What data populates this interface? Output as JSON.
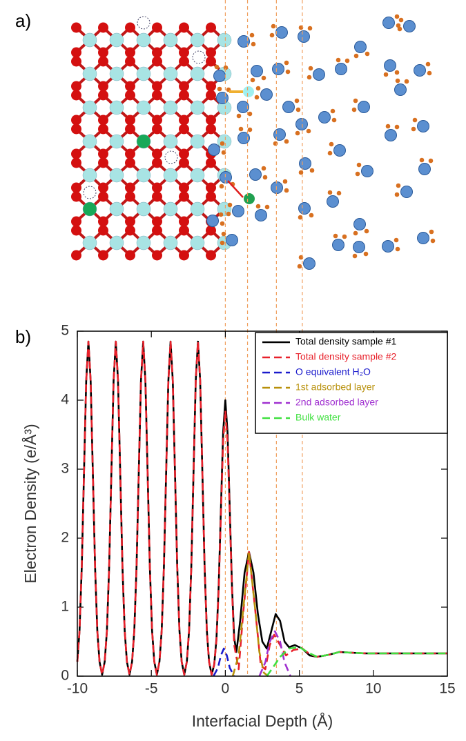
{
  "panel_a_label": "a)",
  "chart_data": {
    "type": "line",
    "panel_label": "b)",
    "xlabel": "Interfacial Depth (Å)",
    "ylabel": "Electron Density (e/Å³)",
    "xlim": [
      -10,
      15
    ],
    "xticks": [
      -10,
      -5,
      0,
      5,
      10,
      15
    ],
    "ylim": [
      0,
      5
    ],
    "yticks": [
      0,
      1,
      2,
      3,
      4,
      5
    ],
    "legend": "upper right",
    "vlines": [
      0,
      1.5,
      3.45,
      5.2
    ],
    "vline_color": "#f0a060",
    "series": [
      {
        "name": "Total density sample #1",
        "color": "#000000",
        "dash": false,
        "x": [
          -10,
          -9.85,
          -9.7,
          -9.55,
          -9.4,
          -9.25,
          -9.1,
          -8.95,
          -8.8,
          -8.65,
          -8.5,
          -8.325,
          -8.15,
          -8,
          -7.85,
          -7.7,
          -7.55,
          -7.4,
          -7.25,
          -7.1,
          -6.95,
          -6.8,
          -6.65,
          -6.475,
          -6.3,
          -6.15,
          -6,
          -5.85,
          -5.7,
          -5.55,
          -5.4,
          -5.25,
          -5.1,
          -4.95,
          -4.8,
          -4.625,
          -4.45,
          -4.3,
          -4.15,
          -4,
          -3.85,
          -3.7,
          -3.55,
          -3.4,
          -3.25,
          -3.1,
          -2.95,
          -2.775,
          -2.6,
          -2.45,
          -2.3,
          -2.15,
          -2,
          -1.85,
          -1.7,
          -1.55,
          -1.4,
          -1.25,
          -1.1,
          -0.925,
          -0.75,
          -0.6,
          -0.45,
          -0.3,
          -0.15,
          0,
          0.15,
          0.3,
          0.45,
          0.6,
          0.75,
          1,
          1.3,
          1.6,
          1.9,
          2.2,
          2.5,
          2.8,
          3.1,
          3.4,
          3.7,
          4,
          4.3,
          4.7,
          5.2,
          5.7,
          6.2,
          7,
          7.7,
          8.5,
          9.5,
          11,
          15
        ],
        "values": [
          0.21,
          0.66,
          1.58,
          2.94,
          4.28,
          4.85,
          4.28,
          2.94,
          1.58,
          0.66,
          0.21,
          0.02,
          0.21,
          0.66,
          1.58,
          2.94,
          4.28,
          4.85,
          4.28,
          2.94,
          1.58,
          0.66,
          0.21,
          0.02,
          0.21,
          0.66,
          1.58,
          2.94,
          4.28,
          4.85,
          4.28,
          2.94,
          1.58,
          0.66,
          0.21,
          0.02,
          0.21,
          0.66,
          1.58,
          2.94,
          4.28,
          4.85,
          4.28,
          2.94,
          1.58,
          0.66,
          0.21,
          0.02,
          0.21,
          0.66,
          1.58,
          2.94,
          4.28,
          4.85,
          4.28,
          2.94,
          1.58,
          0.66,
          0.21,
          0.02,
          0.17,
          0.54,
          1.3,
          2.42,
          3.53,
          4,
          3.53,
          2.42,
          1.3,
          0.55,
          0.35,
          0.8,
          1.5,
          1.8,
          1.5,
          0.9,
          0.5,
          0.4,
          0.65,
          0.9,
          0.8,
          0.5,
          0.42,
          0.45,
          0.4,
          0.3,
          0.28,
          0.31,
          0.35,
          0.34,
          0.33,
          0.33,
          0.33
        ]
      },
      {
        "name": "Total density sample #2",
        "color": "#e8202a",
        "dash": true,
        "x": [
          -10,
          -9.85,
          -9.7,
          -9.55,
          -9.4,
          -9.25,
          -9.1,
          -8.95,
          -8.8,
          -8.65,
          -8.5,
          -8.325,
          -8.15,
          -8,
          -7.85,
          -7.7,
          -7.55,
          -7.4,
          -7.25,
          -7.1,
          -6.95,
          -6.8,
          -6.65,
          -6.475,
          -6.3,
          -6.15,
          -6,
          -5.85,
          -5.7,
          -5.55,
          -5.4,
          -5.25,
          -5.1,
          -4.95,
          -4.8,
          -4.625,
          -4.45,
          -4.3,
          -4.15,
          -4,
          -3.85,
          -3.7,
          -3.55,
          -3.4,
          -3.25,
          -3.1,
          -2.95,
          -2.775,
          -2.6,
          -2.45,
          -2.3,
          -2.15,
          -2,
          -1.85,
          -1.7,
          -1.55,
          -1.4,
          -1.25,
          -1.1,
          -0.925,
          -0.75,
          -0.6,
          -0.45,
          -0.3,
          -0.15,
          0,
          0.15,
          0.3,
          0.45,
          0.6,
          0.9,
          1.2,
          1.6,
          2,
          2.4,
          2.7,
          3,
          3.3,
          3.7,
          4.1,
          4.6,
          5.2,
          5.7,
          6.2,
          7,
          7.7,
          8.5,
          9.5,
          11,
          15
        ],
        "values": [
          0.21,
          0.66,
          1.58,
          2.94,
          4.28,
          4.85,
          4.28,
          2.94,
          1.58,
          0.66,
          0.21,
          0.02,
          0.21,
          0.66,
          1.58,
          2.94,
          4.28,
          4.85,
          4.28,
          2.94,
          1.58,
          0.66,
          0.21,
          0.02,
          0.21,
          0.66,
          1.58,
          2.94,
          4.28,
          4.85,
          4.28,
          2.94,
          1.58,
          0.66,
          0.21,
          0.02,
          0.21,
          0.66,
          1.58,
          2.94,
          4.28,
          4.85,
          4.28,
          2.94,
          1.58,
          0.66,
          0.21,
          0.02,
          0.21,
          0.66,
          1.58,
          2.94,
          4.28,
          4.85,
          4.28,
          2.94,
          1.58,
          0.66,
          0.21,
          0.02,
          0.17,
          0.52,
          1.25,
          2.33,
          3.4,
          3.85,
          3.4,
          2.33,
          1.25,
          0.45,
          0.1,
          0.9,
          1.8,
          1,
          0.15,
          0.1,
          0.45,
          0.6,
          0.45,
          0.3,
          0.38,
          0.4,
          0.32,
          0.28,
          0.31,
          0.35,
          0.34,
          0.33,
          0.33,
          0.33
        ]
      },
      {
        "name": "O equivalent H₂O",
        "color": "#1a1acc",
        "dash": true,
        "x": [
          -0.8,
          -0.5,
          -0.3,
          -0.1,
          0.1,
          0.3,
          0.6
        ],
        "values": [
          0,
          0.12,
          0.3,
          0.4,
          0.3,
          0.12,
          0
        ]
      },
      {
        "name": "1st adsorbed layer",
        "color": "#b8900a",
        "dash": true,
        "x": [
          0.5,
          0.9,
          1.2,
          1.6,
          2,
          2.3,
          2.6,
          2.9
        ],
        "values": [
          0,
          0.3,
          0.95,
          1.8,
          1,
          0.35,
          0.05,
          0
        ]
      },
      {
        "name": "2nd adsorbed layer",
        "color": "#a030d0",
        "dash": true,
        "x": [
          2.3,
          2.7,
          3,
          3.35,
          3.7,
          4,
          4.4
        ],
        "values": [
          0,
          0.2,
          0.5,
          0.65,
          0.5,
          0.2,
          0
        ]
      },
      {
        "name": "Bulk water",
        "color": "#40e040",
        "dash": true,
        "x": [
          2.8,
          3.2,
          3.7,
          4.3,
          5,
          5.7,
          6.2,
          7,
          7.7,
          8.5,
          9.5,
          11,
          15
        ],
        "values": [
          0,
          0.12,
          0.28,
          0.4,
          0.42,
          0.33,
          0.28,
          0.31,
          0.35,
          0.34,
          0.33,
          0.33,
          0.33
        ]
      }
    ]
  }
}
